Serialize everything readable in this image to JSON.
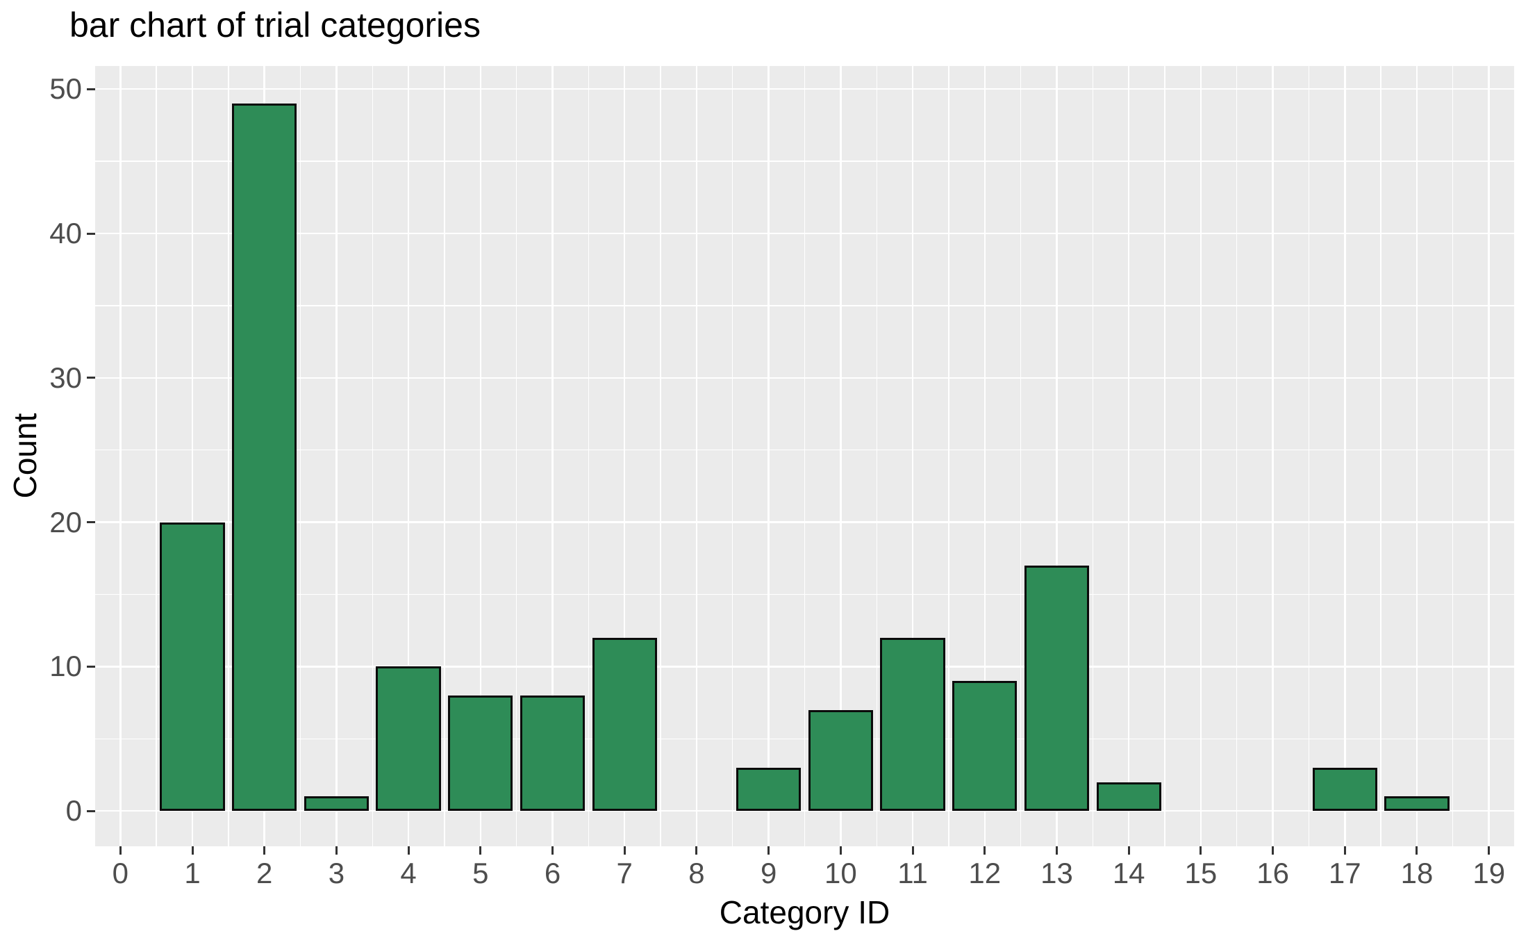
{
  "title": "bar chart of trial categories",
  "chart_data": {
    "type": "bar",
    "title": "bar chart of trial categories",
    "xlabel": "Category ID",
    "ylabel": "Count",
    "categories": [
      1,
      2,
      3,
      4,
      5,
      6,
      7,
      9,
      10,
      11,
      12,
      13,
      14,
      17,
      18
    ],
    "values": [
      20,
      49,
      1,
      10,
      8,
      8,
      12,
      3,
      7,
      12,
      9,
      17,
      2,
      3,
      1
    ],
    "x_tick_labels": [
      "0",
      "1",
      "2",
      "3",
      "4",
      "5",
      "6",
      "7",
      "8",
      "9",
      "10",
      "11",
      "12",
      "13",
      "14",
      "15",
      "16",
      "17",
      "18",
      "19"
    ],
    "x_tick_values": [
      0,
      1,
      2,
      3,
      4,
      5,
      6,
      7,
      8,
      9,
      10,
      11,
      12,
      13,
      14,
      15,
      16,
      17,
      18,
      19
    ],
    "y_tick_labels": [
      "0",
      "10",
      "20",
      "30",
      "40",
      "50"
    ],
    "y_tick_values": [
      0,
      10,
      20,
      30,
      40,
      50
    ],
    "xlim": [
      -0.35,
      19.35
    ],
    "ylim": [
      -2.45,
      51.6
    ],
    "bar_width": 0.9,
    "grid": {
      "major": true,
      "minor": true,
      "minor_x_step": 0.5,
      "minor_y_step": 5
    },
    "legend": "none",
    "colors": {
      "bar_fill": "#2e8c57",
      "bar_border": "#0b0b0b",
      "panel_background": "#ebebeb",
      "gridline": "#ffffff",
      "tick_label": "#4d4d4d",
      "tick_mark": "#333333",
      "title_text": "#000000"
    }
  }
}
